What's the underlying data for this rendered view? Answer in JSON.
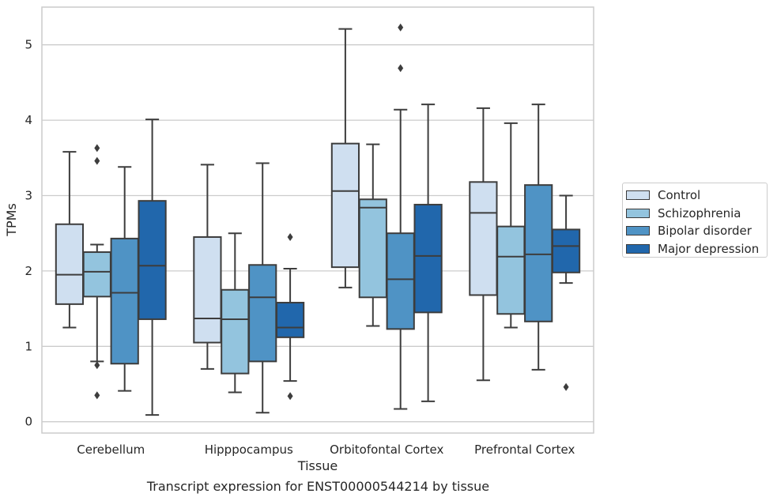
{
  "chart_data": {
    "type": "box",
    "title": "",
    "xlabel": "Tissue",
    "ylabel": "TPMs",
    "ylim": [
      -0.15,
      5.5
    ],
    "yticks": [
      0,
      1,
      2,
      3,
      4,
      5
    ],
    "grid": "horizontal",
    "legend_position": "right",
    "categories": [
      "Cerebellum",
      "Hipppocampus",
      "Orbitofontal Cortex",
      "Prefrontal Cortex"
    ],
    "series": [
      {
        "name": "Control",
        "color": "#cfdff0",
        "boxes": [
          {
            "whislo": 1.25,
            "q1": 1.56,
            "med": 1.95,
            "q3": 2.62,
            "whishi": 3.58,
            "fliers": []
          },
          {
            "whislo": 0.7,
            "q1": 1.05,
            "med": 1.37,
            "q3": 2.45,
            "whishi": 3.41,
            "fliers": []
          },
          {
            "whislo": 1.78,
            "q1": 2.05,
            "med": 3.06,
            "q3": 3.69,
            "whishi": 5.21,
            "fliers": []
          },
          {
            "whislo": 0.55,
            "q1": 1.68,
            "med": 2.77,
            "q3": 3.18,
            "whishi": 4.16,
            "fliers": []
          }
        ]
      },
      {
        "name": "Schizophrenia",
        "color": "#93c4de",
        "boxes": [
          {
            "whislo": 0.8,
            "q1": 1.66,
            "med": 1.99,
            "q3": 2.25,
            "whishi": 2.35,
            "fliers": [
              0.75,
              0.35,
              3.46,
              3.63
            ]
          },
          {
            "whislo": 0.39,
            "q1": 0.64,
            "med": 1.36,
            "q3": 1.75,
            "whishi": 2.5,
            "fliers": []
          },
          {
            "whislo": 1.27,
            "q1": 1.65,
            "med": 2.84,
            "q3": 2.95,
            "whishi": 3.68,
            "fliers": []
          },
          {
            "whislo": 1.25,
            "q1": 1.43,
            "med": 2.19,
            "q3": 2.59,
            "whishi": 3.96,
            "fliers": []
          }
        ]
      },
      {
        "name": "Bipolar disorder",
        "color": "#4f93c5",
        "boxes": [
          {
            "whislo": 0.41,
            "q1": 0.77,
            "med": 1.71,
            "q3": 2.43,
            "whishi": 3.38,
            "fliers": []
          },
          {
            "whislo": 0.12,
            "q1": 0.8,
            "med": 1.65,
            "q3": 2.08,
            "whishi": 3.43,
            "fliers": []
          },
          {
            "whislo": 0.17,
            "q1": 1.23,
            "med": 1.89,
            "q3": 2.5,
            "whishi": 4.14,
            "fliers": [
              4.69,
              5.23
            ]
          },
          {
            "whislo": 0.69,
            "q1": 1.33,
            "med": 2.22,
            "q3": 3.14,
            "whishi": 4.21,
            "fliers": []
          }
        ]
      },
      {
        "name": "Major depression",
        "color": "#2167ac",
        "boxes": [
          {
            "whislo": 0.09,
            "q1": 1.36,
            "med": 2.07,
            "q3": 2.93,
            "whishi": 4.01,
            "fliers": []
          },
          {
            "whislo": 0.54,
            "q1": 1.12,
            "med": 1.25,
            "q3": 1.58,
            "whishi": 2.03,
            "fliers": [
              0.34,
              2.45
            ]
          },
          {
            "whislo": 0.27,
            "q1": 1.45,
            "med": 2.2,
            "q3": 2.88,
            "whishi": 4.21,
            "fliers": []
          },
          {
            "whislo": 1.84,
            "q1": 1.98,
            "med": 2.33,
            "q3": 2.55,
            "whishi": 3.0,
            "fliers": [
              0.46
            ]
          }
        ]
      }
    ],
    "caption": "Transcript expression for ENST00000544214 by tissue"
  }
}
